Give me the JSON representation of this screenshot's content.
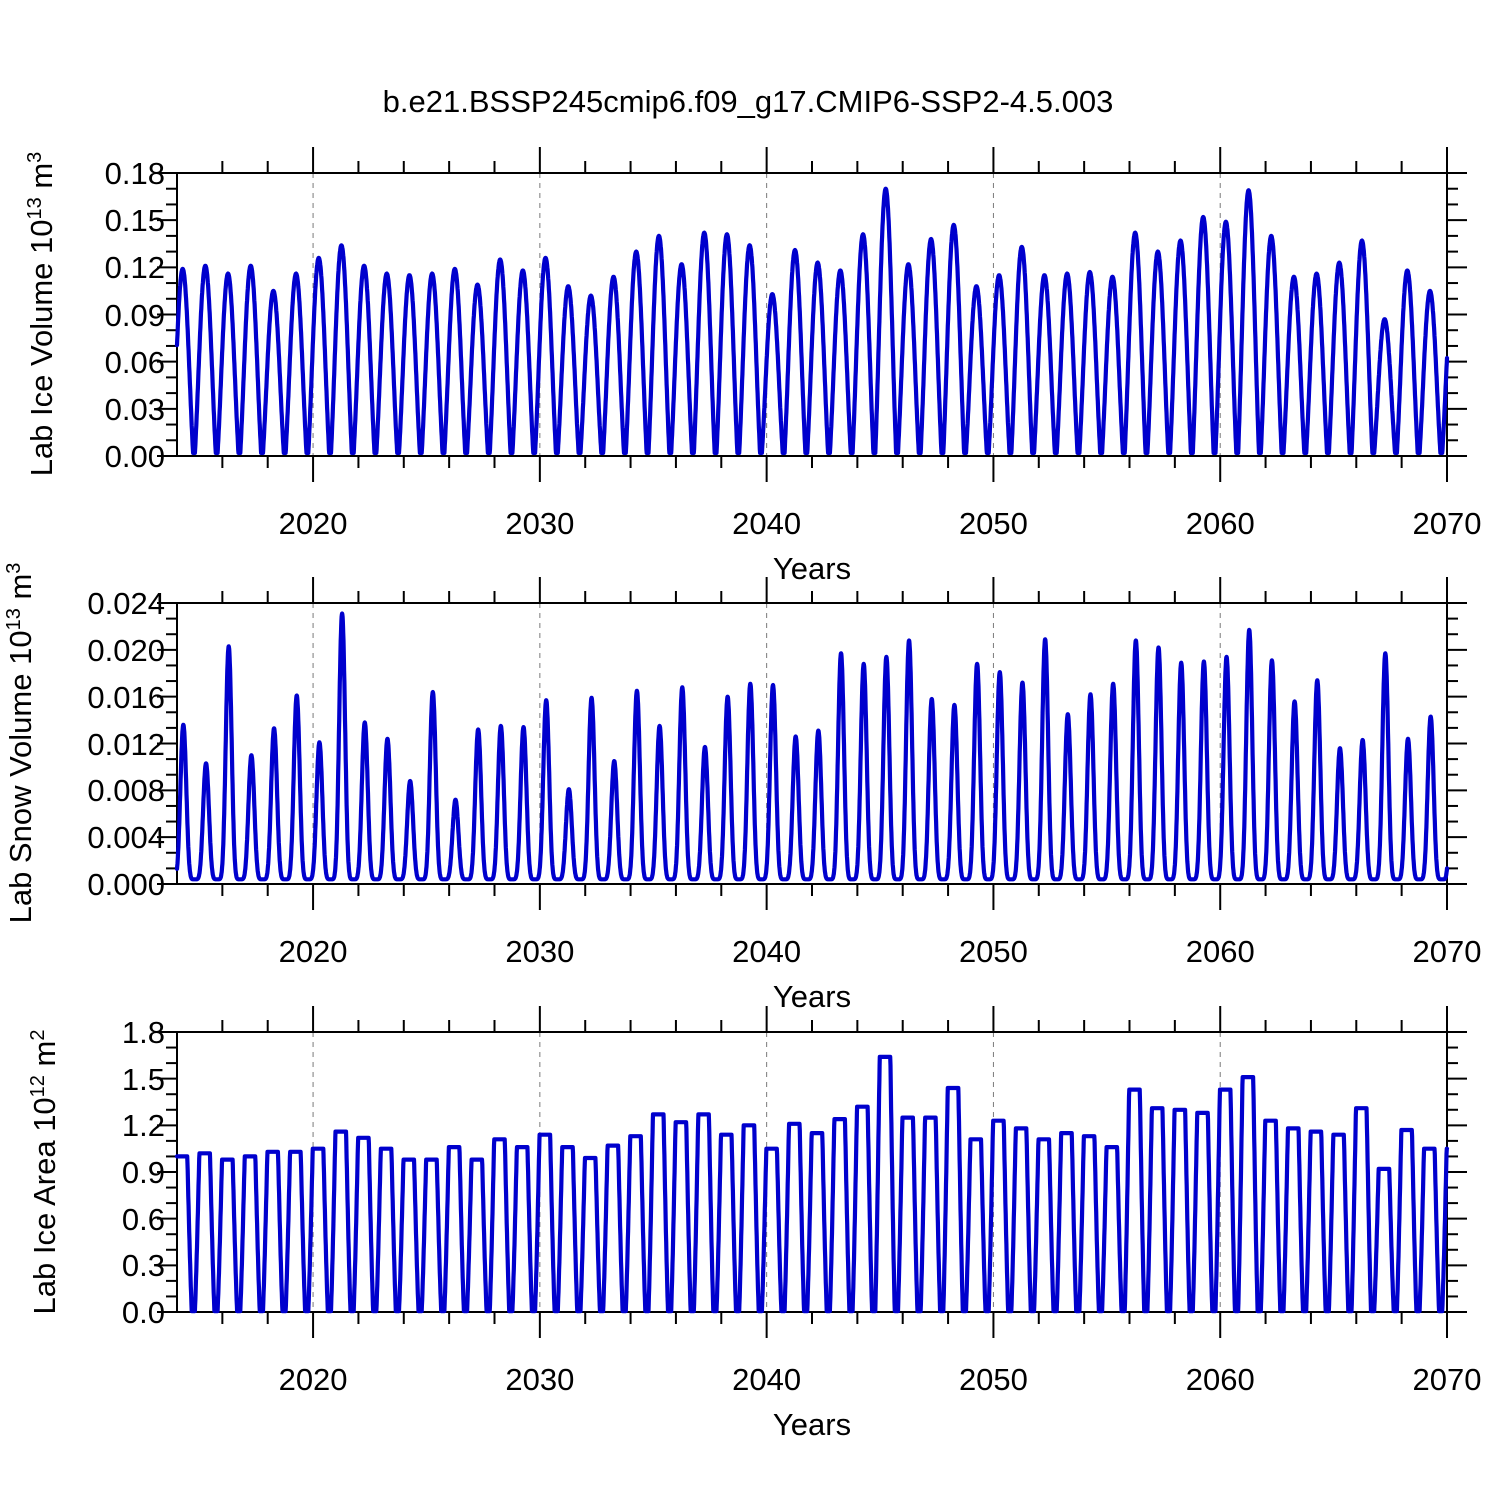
{
  "title": "b.e21.BSSP245cmip6.f09_g17.CMIP6-SSP2-4.5.003",
  "line_color": "#0000CD",
  "chart_data": [
    {
      "type": "line",
      "panel": "lab-ice-volume",
      "ylabel": {
        "prefix": "Lab Ice Volume 10",
        "exp": "13",
        "unit": " m",
        "unit_exp": "3"
      },
      "xlabel": "Years",
      "x_range": [
        2014,
        2070
      ],
      "y_range": [
        0,
        0.18
      ],
      "y_major_step": 0.03,
      "y_minor_divisions": 3,
      "y_tick_labels": [
        "0.18",
        "0.15",
        "0.12",
        "0.09",
        "0.06",
        "0.03",
        "0.00"
      ],
      "x_tick_years": [
        2020,
        2030,
        2040,
        2050,
        2060,
        2070
      ],
      "x_tick_labels": [
        "2020",
        "2030",
        "2040",
        "2050",
        "2060",
        "2070"
      ],
      "x_minor_step_years": 2,
      "gridline_years": [
        2020,
        2030,
        2040,
        2050,
        2060
      ],
      "peaks_start_year": 2014,
      "annual_peaks": [
        0.119,
        0.121,
        0.116,
        0.121,
        0.105,
        0.116,
        0.126,
        0.134,
        0.121,
        0.116,
        0.115,
        0.116,
        0.119,
        0.109,
        0.125,
        0.118,
        0.126,
        0.108,
        0.102,
        0.114,
        0.13,
        0.14,
        0.122,
        0.142,
        0.141,
        0.134,
        0.103,
        0.131,
        0.123,
        0.118,
        0.141,
        0.17,
        0.122,
        0.138,
        0.147,
        0.108,
        0.115,
        0.133,
        0.115,
        0.116,
        0.117,
        0.114,
        0.142,
        0.13,
        0.137,
        0.152,
        0.149,
        0.169,
        0.14,
        0.114,
        0.116,
        0.123,
        0.137,
        0.087,
        0.118,
        0.105
      ],
      "waveform": {
        "min": 0.002,
        "lo": 0.02,
        "hi": 1.0,
        "exp": 0.75,
        "peak_phase": 0.25
      }
    },
    {
      "type": "line",
      "panel": "lab-snow-volume",
      "ylabel": {
        "prefix": "Lab Snow Volume 10",
        "exp": "13",
        "unit": " m",
        "unit_exp": "3"
      },
      "xlabel": "Years",
      "x_range": [
        2014,
        2070
      ],
      "y_range": [
        0,
        0.024
      ],
      "y_major_step": 0.004,
      "y_minor_divisions": 3,
      "y_tick_labels": [
        "0.024",
        "0.020",
        "0.016",
        "0.012",
        "0.008",
        "0.004",
        "0.000"
      ],
      "x_tick_years": [
        2020,
        2030,
        2040,
        2050,
        2060,
        2070
      ],
      "x_tick_labels": [
        "2020",
        "2030",
        "2040",
        "2050",
        "2060",
        "2070"
      ],
      "x_minor_step_years": 2,
      "gridline_years": [
        2020,
        2030,
        2040,
        2050,
        2060
      ],
      "peaks_start_year": 2014,
      "annual_peaks": [
        0.0136,
        0.0103,
        0.0203,
        0.011,
        0.0133,
        0.0161,
        0.0121,
        0.0231,
        0.0138,
        0.0124,
        0.0088,
        0.0164,
        0.0072,
        0.0132,
        0.0135,
        0.0134,
        0.0157,
        0.0081,
        0.0159,
        0.0105,
        0.0165,
        0.0135,
        0.0168,
        0.0117,
        0.016,
        0.0171,
        0.017,
        0.0126,
        0.0131,
        0.0197,
        0.0188,
        0.0194,
        0.0208,
        0.0158,
        0.0153,
        0.0188,
        0.0181,
        0.0172,
        0.0209,
        0.0145,
        0.0162,
        0.0171,
        0.0208,
        0.0202,
        0.0189,
        0.019,
        0.0194,
        0.0217,
        0.0191,
        0.0156,
        0.0174,
        0.0116,
        0.0123,
        0.0197,
        0.0124,
        0.0143
      ],
      "waveform": {
        "min": 0.0004,
        "lo": 0.0,
        "hi": 1.0,
        "exp": 3.0,
        "peak_phase": 0.28
      }
    },
    {
      "type": "line",
      "panel": "lab-ice-area",
      "ylabel": {
        "prefix": "Lab Ice Area 10",
        "exp": "12",
        "unit": " m",
        "unit_exp": "2"
      },
      "xlabel": "Years",
      "x_range": [
        2014,
        2070
      ],
      "y_range": [
        0,
        1.8
      ],
      "y_major_step": 0.3,
      "y_minor_divisions": 3,
      "y_tick_labels": [
        "1.8",
        "1.5",
        "1.2",
        "0.9",
        "0.6",
        "0.3",
        "0.0"
      ],
      "x_tick_years": [
        2020,
        2030,
        2040,
        2050,
        2060,
        2070
      ],
      "x_tick_labels": [
        "2020",
        "2030",
        "2040",
        "2050",
        "2060",
        "2070"
      ],
      "x_minor_step_years": 2,
      "gridline_years": [
        2020,
        2030,
        2040,
        2050,
        2060
      ],
      "peaks_start_year": 2014,
      "annual_peaks": [
        1.0,
        1.02,
        0.98,
        1.0,
        1.03,
        1.03,
        1.05,
        1.16,
        1.12,
        1.05,
        0.98,
        0.98,
        1.06,
        0.98,
        1.11,
        1.06,
        1.14,
        1.06,
        0.99,
        1.07,
        1.13,
        1.27,
        1.22,
        1.27,
        1.14,
        1.2,
        1.05,
        1.21,
        1.15,
        1.24,
        1.32,
        1.64,
        1.25,
        1.25,
        1.44,
        1.11,
        1.23,
        1.18,
        1.11,
        1.15,
        1.13,
        1.06,
        1.43,
        1.31,
        1.3,
        1.28,
        1.43,
        1.51,
        1.23,
        1.18,
        1.16,
        1.14,
        1.31,
        0.92,
        1.17,
        1.05
      ],
      "waveform": {
        "min": 0.006,
        "lo": 0.05,
        "hi": 0.55,
        "exp": 0.9,
        "peak_phase": 0.22
      }
    }
  ]
}
